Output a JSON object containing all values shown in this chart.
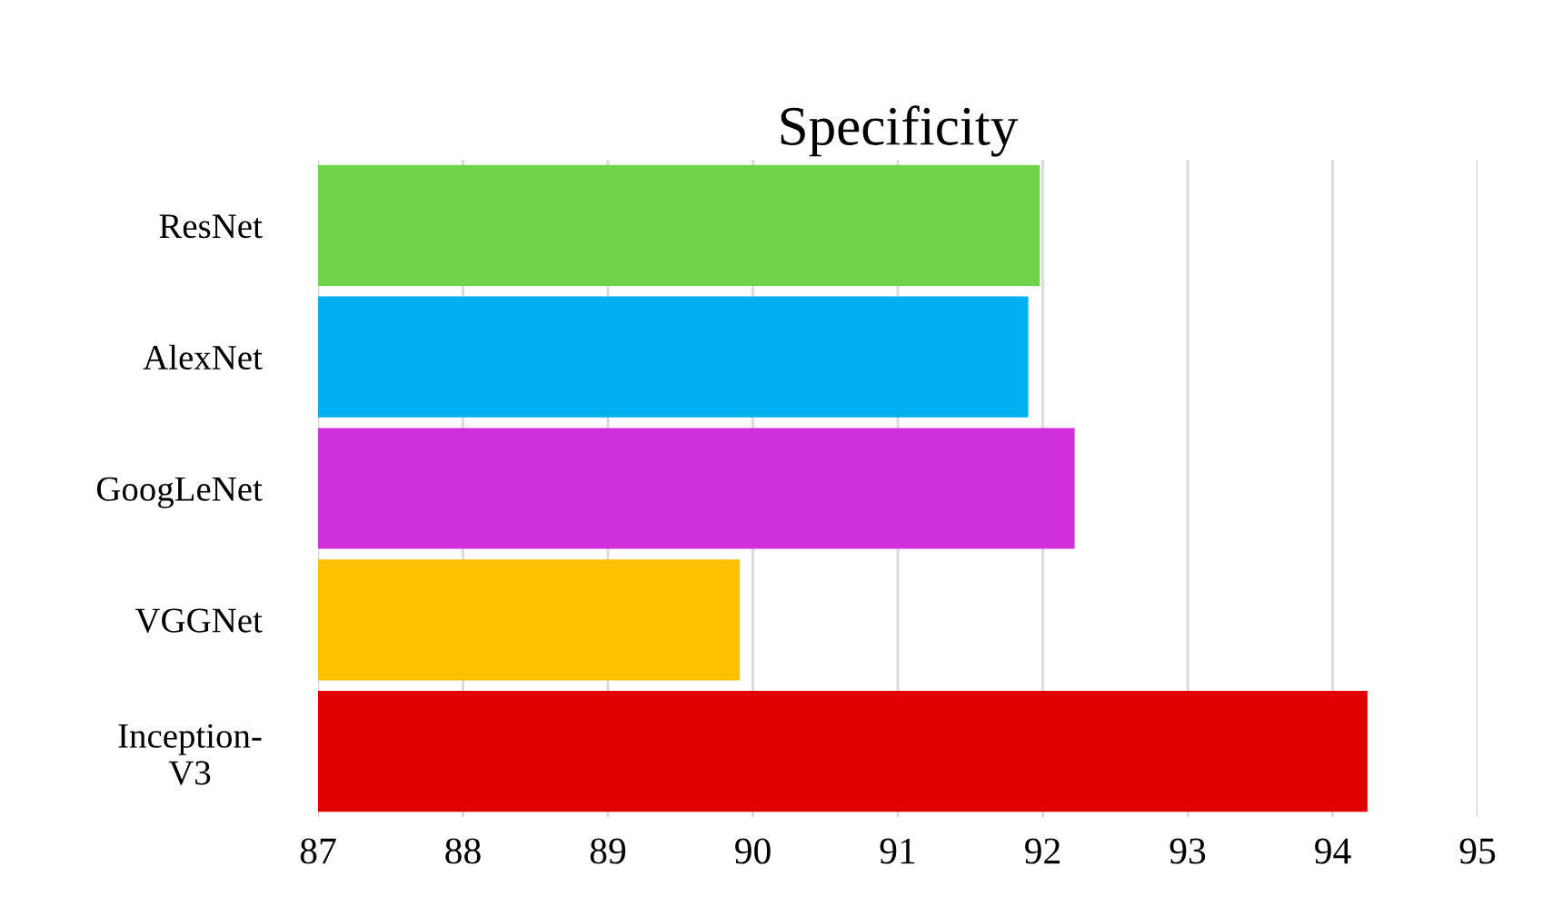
{
  "chart_data": {
    "type": "bar",
    "orientation": "horizontal",
    "title": "Specificity",
    "categories": [
      "ResNet",
      "AlexNet",
      "GoogLeNet",
      "VGGNet",
      "Inception-\nV3"
    ],
    "values": [
      91.98,
      91.9,
      92.22,
      89.91,
      94.24
    ],
    "colors": [
      "#70d44b",
      "#00b0f0",
      "#cf30dc",
      "#ffc000",
      "#e00000"
    ],
    "xlim": [
      87,
      95
    ],
    "xticks": [
      87,
      88,
      89,
      90,
      91,
      92,
      93,
      94,
      95
    ],
    "grid": "x"
  }
}
